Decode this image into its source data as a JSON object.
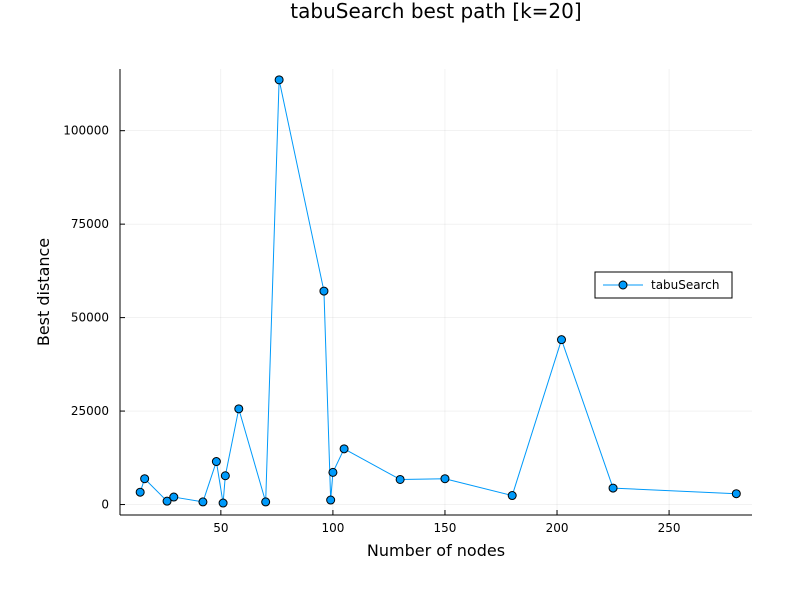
{
  "chart_data": {
    "type": "line",
    "title": "tabuSearch best path [k=20]",
    "xlabel": "Number of nodes",
    "ylabel": "Best distance",
    "xlim": [
      5,
      287
    ],
    "ylim": [
      -2800,
      116500
    ],
    "xticks": [
      50,
      100,
      150,
      200,
      250
    ],
    "yticks": [
      0,
      25000,
      50000,
      75000,
      100000
    ],
    "grid": true,
    "legend_position": "right",
    "series": [
      {
        "name": "tabuSearch",
        "color": "#009AFA",
        "marker": "circle",
        "points": [
          {
            "x": 14,
            "y": 3300
          },
          {
            "x": 16,
            "y": 6900
          },
          {
            "x": 26,
            "y": 900
          },
          {
            "x": 29,
            "y": 2000
          },
          {
            "x": 42,
            "y": 700
          },
          {
            "x": 48,
            "y": 11500
          },
          {
            "x": 51,
            "y": 400
          },
          {
            "x": 52,
            "y": 7700
          },
          {
            "x": 58,
            "y": 25600
          },
          {
            "x": 70,
            "y": 700
          },
          {
            "x": 76,
            "y": 113600
          },
          {
            "x": 96,
            "y": 57100
          },
          {
            "x": 99,
            "y": 1200
          },
          {
            "x": 100,
            "y": 8600
          },
          {
            "x": 105,
            "y": 14900
          },
          {
            "x": 130,
            "y": 6700
          },
          {
            "x": 150,
            "y": 6900
          },
          {
            "x": 180,
            "y": 2400
          },
          {
            "x": 202,
            "y": 44100
          },
          {
            "x": 225,
            "y": 4400
          },
          {
            "x": 280,
            "y": 2900
          }
        ]
      }
    ]
  }
}
